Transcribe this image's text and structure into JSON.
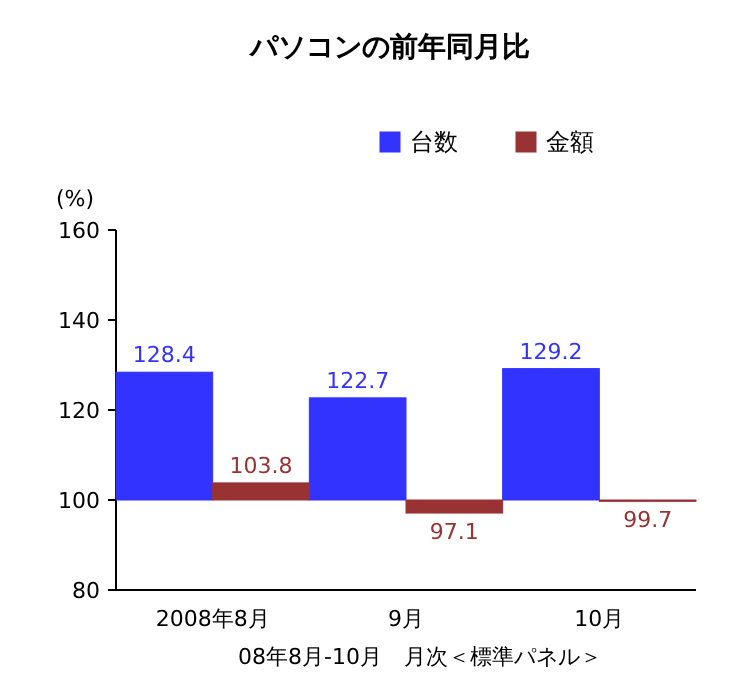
{
  "chart_data": {
    "type": "bar",
    "title": "パソコンの前年同月比",
    "ylabel": "(%)",
    "categories": [
      "2008年8月",
      "9月",
      "10月"
    ],
    "series": [
      {
        "name": "台数",
        "color": "#3333ff",
        "base": [
          100,
          100,
          100
        ],
        "values": [
          28.4,
          22.7,
          29.2
        ],
        "value_labels": [
          "128.4",
          "122.7",
          "129.2"
        ]
      },
      {
        "name": "金額",
        "color": "#993333",
        "base": [
          100,
          100,
          100
        ],
        "values": [
          3.8,
          -2.9,
          -0.3
        ],
        "value_labels": [
          "103.8",
          "97.1",
          "99.7"
        ]
      }
    ],
    "ylim": [
      80,
      160
    ],
    "yticks": [
      80,
      100,
      120,
      140,
      160
    ],
    "legend": "top right",
    "annotations": [
      "08年8月-10月　月次＜標準パネル＞"
    ]
  }
}
